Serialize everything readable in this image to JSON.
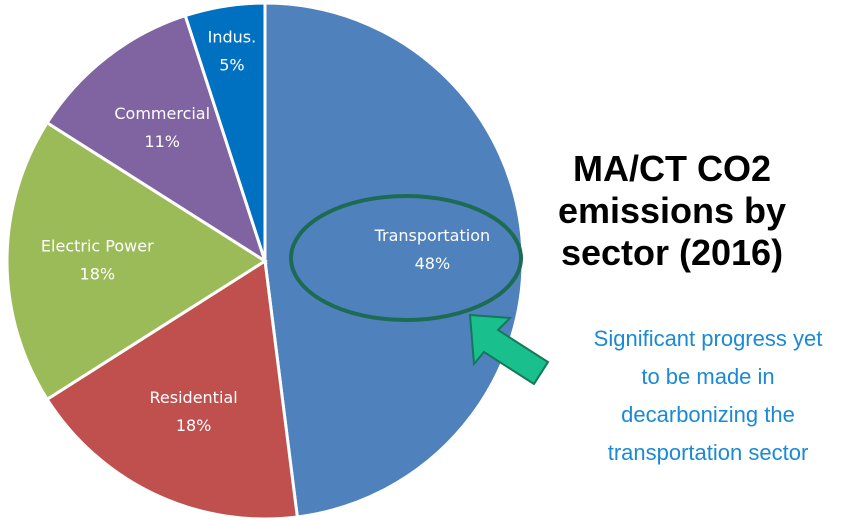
{
  "chart_data": {
    "type": "pie",
    "title": "MA/CT CO2 emissions by sector (2016)",
    "annotation": "Significant progress yet to be made in decarbonizing the transportation sector",
    "categories": [
      "Transportation",
      "Residential",
      "Electric Power",
      "Commercial",
      "Indus."
    ],
    "values": [
      48,
      18,
      18,
      11,
      5
    ],
    "value_labels": [
      "48%",
      "18%",
      "18%",
      "11%",
      "5%"
    ],
    "colors": [
      "#4f81bd",
      "#c0504d",
      "#9bbb59",
      "#8064a2",
      "#0070c0"
    ]
  }
}
